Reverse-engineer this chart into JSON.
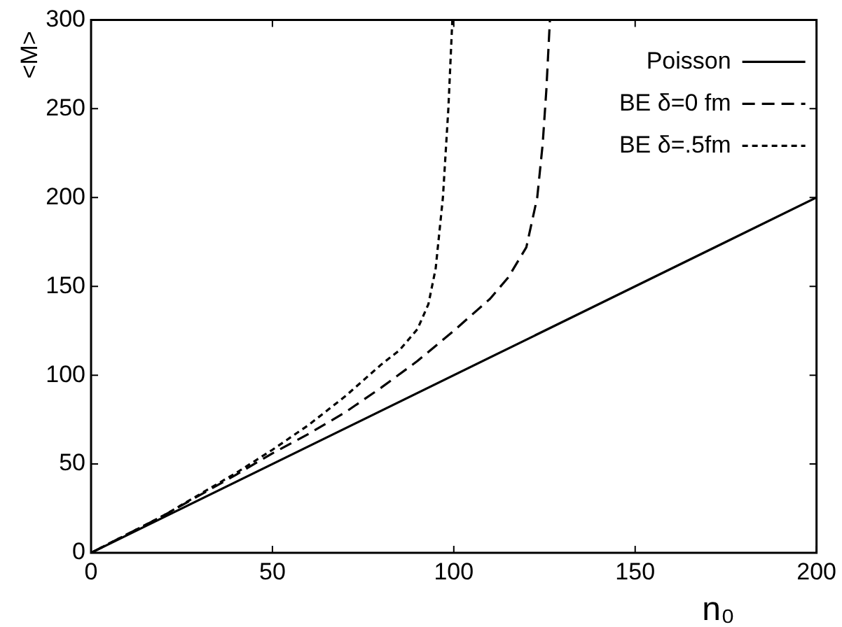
{
  "chart_data": {
    "type": "line",
    "xlabel": "n₀",
    "ylabel": "<M>",
    "xlim": [
      0,
      200
    ],
    "ylim": [
      0,
      300
    ],
    "xticks": [
      0,
      50,
      100,
      150,
      200
    ],
    "yticks": [
      0,
      50,
      100,
      150,
      200,
      250,
      300
    ],
    "legend": "top right",
    "series": [
      {
        "name": "Poisson",
        "color": "#000000",
        "line_style": "solid",
        "x": [
          0,
          200
        ],
        "values": [
          0,
          200
        ]
      },
      {
        "name": "BE δ=0 fm",
        "color": "#000000",
        "line_style": "dashed",
        "x": [
          0,
          20,
          40,
          50,
          60,
          70,
          80,
          90,
          100,
          110,
          115,
          120,
          123,
          124.5,
          125.5,
          126.5
        ],
        "values": [
          0,
          21,
          44,
          56,
          67,
          79,
          93,
          108,
          125,
          143,
          155,
          172,
          200,
          230,
          260,
          300
        ]
      },
      {
        "name": "BE δ=.5fm",
        "color": "#000000",
        "line_style": "dotted",
        "x": [
          0,
          20,
          40,
          50,
          60,
          70,
          80,
          85,
          90,
          93,
          95,
          97,
          98.5,
          99.6
        ],
        "values": [
          0,
          21,
          45,
          58,
          72,
          88,
          106,
          114,
          126,
          140,
          160,
          200,
          250,
          300
        ]
      }
    ]
  }
}
